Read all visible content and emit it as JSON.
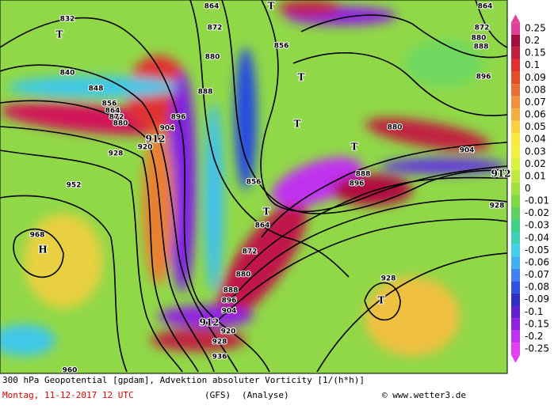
{
  "map": {
    "contour_labels": [
      832,
      840,
      848,
      856,
      864,
      872,
      880,
      904,
      912,
      920,
      928,
      952,
      968,
      960,
      864,
      872,
      880,
      888,
      896,
      856,
      856,
      864,
      872,
      880,
      888,
      896,
      904,
      912,
      920,
      928,
      936,
      880,
      904,
      888,
      896,
      928,
      928,
      864,
      872,
      880,
      888,
      896,
      912
    ],
    "pressure_centers": [
      "T",
      "T",
      "T",
      "T",
      "T",
      "T",
      "T",
      "H"
    ]
  },
  "legend": {
    "values": [
      0.25,
      0.2,
      0.15,
      0.1,
      0.09,
      0.08,
      0.07,
      0.06,
      0.05,
      0.04,
      0.03,
      0.02,
      0.01,
      0,
      -0.01,
      -0.02,
      -0.03,
      -0.04,
      -0.05,
      -0.06,
      -0.07,
      -0.08,
      -0.09,
      -0.1,
      -0.15,
      -0.2,
      -0.25
    ],
    "colors": [
      "#e0409a",
      "#a0103c",
      "#c02040",
      "#e03030",
      "#e05028",
      "#e87038",
      "#f09040",
      "#f0b040",
      "#f8d040",
      "#f8e840",
      "#f0f040",
      "#d8f040",
      "#c0e840",
      "#a0e040",
      "#80d840",
      "#60d060",
      "#40d088",
      "#40d0b8",
      "#40d0e8",
      "#40b0f0",
      "#4080f0",
      "#3050e0",
      "#3030c0",
      "#6020d0",
      "#9020e0",
      "#c030f0",
      "#e040f0"
    ]
  },
  "footer": {
    "line1": "300 hPa Geopotential [gpdam], Advektion absoluter Vorticity [1/(h*h)]",
    "date": "Montag, 11-12-2017  12 UTC",
    "model": "(GFS)",
    "run": "(Analyse)",
    "source": "© www.wetter3.de"
  }
}
